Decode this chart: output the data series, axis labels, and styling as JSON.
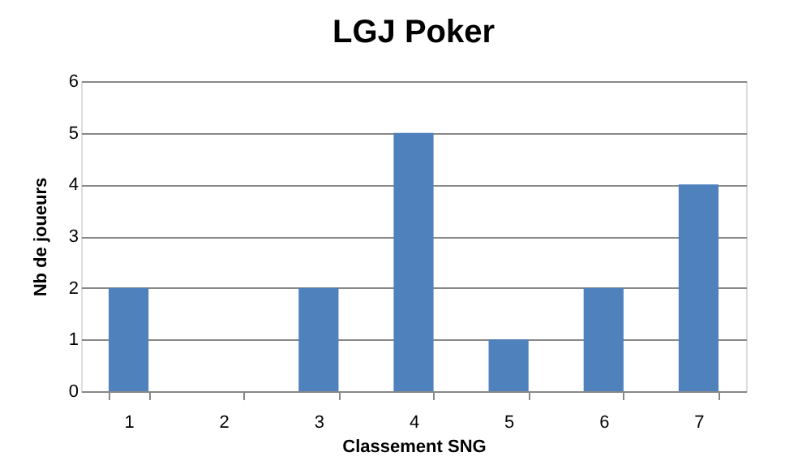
{
  "chart_data": {
    "type": "bar",
    "title": "LGJ Poker",
    "xlabel": "Classement SNG",
    "ylabel": "Nb de joueurs",
    "categories": [
      "1",
      "2",
      "3",
      "4",
      "5",
      "6",
      "7"
    ],
    "values": [
      2,
      0,
      2,
      5,
      1,
      2,
      4
    ],
    "color": "#4f81bd",
    "ylim": [
      0,
      6
    ],
    "yticks": [
      0,
      1,
      2,
      3,
      4,
      5,
      6
    ],
    "grid": "y"
  }
}
